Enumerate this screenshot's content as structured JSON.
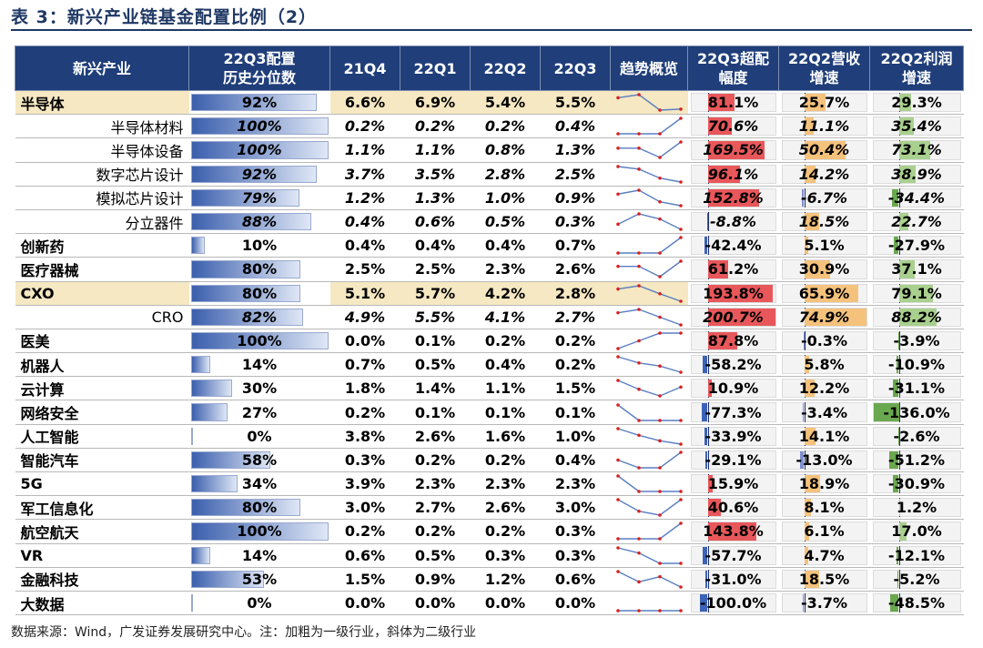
{
  "title": "表 3：新兴产业链基金配置比例（2）",
  "source": "数据来源：Wind，广发证券发展研究中心。注：加粗为一级行业，斜体为二级行业",
  "colors": {
    "header_bg": "#1f3e7a",
    "highlight_bg": "#f5e8c2",
    "excess_pos": "#e8575a",
    "excess_neg": "#3c63b8",
    "revenue_pos": "#f5c27c",
    "profit_neg": "#6aa84f",
    "sparkline": "#5a7fc2",
    "sparkline_dot": "#d92020"
  },
  "chart_data": {
    "type": "table",
    "columns": [
      "新兴产业",
      "22Q3配置历史分位数",
      "21Q4",
      "22Q1",
      "22Q2",
      "22Q3",
      "趋势概览",
      "22Q3超配幅度",
      "22Q2营收增速",
      "22Q2利润增速"
    ],
    "header": {
      "industry": "新兴产业",
      "pct_line1": "22Q3配置",
      "pct_line2": "历史分位数",
      "q1": "21Q4",
      "q2": "22Q1",
      "q3": "22Q2",
      "q4": "22Q3",
      "trend": "趋势概览",
      "ex_line1": "22Q3超配",
      "ex_line2": "幅度",
      "rev_line1": "22Q2营收",
      "rev_line2": "增速",
      "prf_line1": "22Q2利润",
      "prf_line2": "增速"
    },
    "rows": [
      {
        "name": "半导体",
        "level": 1,
        "highlight": true,
        "pct": "92%",
        "pct_value": 92,
        "q": [
          "6.6%",
          "6.9%",
          "5.4%",
          "5.5%"
        ],
        "trend": [
          6.6,
          6.9,
          5.4,
          5.5
        ],
        "excess": "81.1%",
        "excess_value": 81.1,
        "revenue": "25.7%",
        "revenue_value": 25.7,
        "profit": "29.3%",
        "profit_value": 29.3
      },
      {
        "name": "半导体材料",
        "level": 2,
        "highlight": false,
        "pct": "100%",
        "pct_value": 100,
        "q": [
          "0.2%",
          "0.2%",
          "0.2%",
          "0.4%"
        ],
        "trend": [
          0.2,
          0.2,
          0.2,
          0.4
        ],
        "excess": "70.6%",
        "excess_value": 70.6,
        "revenue": "11.1%",
        "revenue_value": 11.1,
        "profit": "35.4%",
        "profit_value": 35.4
      },
      {
        "name": "半导体设备",
        "level": 2,
        "highlight": false,
        "pct": "100%",
        "pct_value": 100,
        "q": [
          "1.1%",
          "1.1%",
          "0.8%",
          "1.3%"
        ],
        "trend": [
          1.1,
          1.1,
          0.8,
          1.3
        ],
        "excess": "169.5%",
        "excess_value": 169.5,
        "revenue": "50.4%",
        "revenue_value": 50.4,
        "profit": "73.1%",
        "profit_value": 73.1
      },
      {
        "name": "数字芯片设计",
        "level": 2,
        "highlight": false,
        "pct": "92%",
        "pct_value": 92,
        "q": [
          "3.7%",
          "3.5%",
          "2.8%",
          "2.5%"
        ],
        "trend": [
          3.7,
          3.5,
          2.8,
          2.5
        ],
        "excess": "96.1%",
        "excess_value": 96.1,
        "revenue": "14.2%",
        "revenue_value": 14.2,
        "profit": "38.9%",
        "profit_value": 38.9
      },
      {
        "name": "模拟芯片设计",
        "level": 2,
        "highlight": false,
        "pct": "79%",
        "pct_value": 79,
        "q": [
          "1.2%",
          "1.3%",
          "1.0%",
          "0.9%"
        ],
        "trend": [
          1.2,
          1.3,
          1.0,
          0.9
        ],
        "excess": "152.8%",
        "excess_value": 152.8,
        "revenue": "-6.7%",
        "revenue_value": -6.7,
        "profit": "-34.4%",
        "profit_value": -34.4
      },
      {
        "name": "分立器件",
        "level": 2,
        "highlight": false,
        "pct": "88%",
        "pct_value": 88,
        "q": [
          "0.4%",
          "0.6%",
          "0.5%",
          "0.3%"
        ],
        "trend": [
          0.4,
          0.6,
          0.5,
          0.3
        ],
        "excess": "-8.8%",
        "excess_value": -8.8,
        "revenue": "18.5%",
        "revenue_value": 18.5,
        "profit": "22.7%",
        "profit_value": 22.7
      },
      {
        "name": "创新药",
        "level": 1,
        "highlight": false,
        "pct": "10%",
        "pct_value": 10,
        "q": [
          "0.4%",
          "0.4%",
          "0.4%",
          "0.7%"
        ],
        "trend": [
          0.4,
          0.4,
          0.4,
          0.7
        ],
        "excess": "-42.4%",
        "excess_value": -42.4,
        "revenue": "5.1%",
        "revenue_value": 5.1,
        "profit": "-27.9%",
        "profit_value": -27.9
      },
      {
        "name": "医疗器械",
        "level": 1,
        "highlight": false,
        "pct": "80%",
        "pct_value": 80,
        "q": [
          "2.5%",
          "2.5%",
          "2.3%",
          "2.6%"
        ],
        "trend": [
          2.5,
          2.5,
          2.3,
          2.6
        ],
        "excess": "61.2%",
        "excess_value": 61.2,
        "revenue": "30.9%",
        "revenue_value": 30.9,
        "profit": "37.1%",
        "profit_value": 37.1
      },
      {
        "name": "CXO",
        "level": 1,
        "highlight": true,
        "pct": "80%",
        "pct_value": 80,
        "q": [
          "5.1%",
          "5.7%",
          "4.2%",
          "2.8%"
        ],
        "trend": [
          5.1,
          5.7,
          4.2,
          2.8
        ],
        "excess": "193.8%",
        "excess_value": 193.8,
        "revenue": "65.9%",
        "revenue_value": 65.9,
        "profit": "79.1%",
        "profit_value": 79.1
      },
      {
        "name": "CRO",
        "level": 2,
        "highlight": false,
        "pct": "82%",
        "pct_value": 82,
        "q": [
          "4.9%",
          "5.5%",
          "4.1%",
          "2.7%"
        ],
        "trend": [
          4.9,
          5.5,
          4.1,
          2.7
        ],
        "excess": "200.7%",
        "excess_value": 200.7,
        "revenue": "74.9%",
        "revenue_value": 74.9,
        "profit": "88.2%",
        "profit_value": 88.2
      },
      {
        "name": "医美",
        "level": 1,
        "highlight": false,
        "pct": "100%",
        "pct_value": 100,
        "q": [
          "0.0%",
          "0.1%",
          "0.2%",
          "0.2%"
        ],
        "trend": [
          0.0,
          0.1,
          0.2,
          0.2
        ],
        "excess": "87.8%",
        "excess_value": 87.8,
        "revenue": "-0.3%",
        "revenue_value": -0.3,
        "profit": "-3.9%",
        "profit_value": -3.9
      },
      {
        "name": "机器人",
        "level": 1,
        "highlight": false,
        "pct": "14%",
        "pct_value": 14,
        "q": [
          "0.7%",
          "0.5%",
          "0.4%",
          "0.2%"
        ],
        "trend": [
          0.7,
          0.5,
          0.4,
          0.2
        ],
        "excess": "-58.2%",
        "excess_value": -58.2,
        "revenue": "5.8%",
        "revenue_value": 5.8,
        "profit": "-10.9%",
        "profit_value": -10.9
      },
      {
        "name": "云计算",
        "level": 1,
        "highlight": false,
        "pct": "30%",
        "pct_value": 30,
        "q": [
          "1.8%",
          "1.4%",
          "1.1%",
          "1.5%"
        ],
        "trend": [
          1.8,
          1.4,
          1.1,
          1.5
        ],
        "excess": "10.9%",
        "excess_value": 10.9,
        "revenue": "12.2%",
        "revenue_value": 12.2,
        "profit": "-31.1%",
        "profit_value": -31.1
      },
      {
        "name": "网络安全",
        "level": 1,
        "highlight": false,
        "pct": "27%",
        "pct_value": 27,
        "q": [
          "0.2%",
          "0.1%",
          "0.1%",
          "0.1%"
        ],
        "trend": [
          0.2,
          0.1,
          0.1,
          0.1
        ],
        "excess": "-77.3%",
        "excess_value": -77.3,
        "revenue": "-3.4%",
        "revenue_value": -3.4,
        "profit": "-136.0%",
        "profit_value": -136.0
      },
      {
        "name": "人工智能",
        "level": 1,
        "highlight": false,
        "pct": "0%",
        "pct_value": 0,
        "q": [
          "3.8%",
          "2.6%",
          "1.6%",
          "1.0%"
        ],
        "trend": [
          3.8,
          2.6,
          1.6,
          1.0
        ],
        "excess": "-33.9%",
        "excess_value": -33.9,
        "revenue": "14.1%",
        "revenue_value": 14.1,
        "profit": "-2.6%",
        "profit_value": -2.6
      },
      {
        "name": "智能汽车",
        "level": 1,
        "highlight": false,
        "pct": "58%",
        "pct_value": 58,
        "q": [
          "0.3%",
          "0.2%",
          "0.2%",
          "0.4%"
        ],
        "trend": [
          0.3,
          0.2,
          0.2,
          0.4
        ],
        "excess": "-29.1%",
        "excess_value": -29.1,
        "revenue": "-13.0%",
        "revenue_value": -13.0,
        "profit": "-51.2%",
        "profit_value": -51.2
      },
      {
        "name": "5G",
        "level": 1,
        "highlight": false,
        "pct": "34%",
        "pct_value": 34,
        "q": [
          "3.9%",
          "2.3%",
          "2.3%",
          "2.3%"
        ],
        "trend": [
          3.9,
          2.3,
          2.3,
          2.3
        ],
        "excess": "15.9%",
        "excess_value": 15.9,
        "revenue": "18.9%",
        "revenue_value": 18.9,
        "profit": "-30.9%",
        "profit_value": -30.9
      },
      {
        "name": "军工信息化",
        "level": 1,
        "highlight": false,
        "pct": "80%",
        "pct_value": 80,
        "q": [
          "3.0%",
          "2.7%",
          "2.6%",
          "3.0%"
        ],
        "trend": [
          3.0,
          2.7,
          2.6,
          3.0
        ],
        "excess": "40.6%",
        "excess_value": 40.6,
        "revenue": "8.1%",
        "revenue_value": 8.1,
        "profit": "1.2%",
        "profit_value": 1.2
      },
      {
        "name": "航空航天",
        "level": 1,
        "highlight": false,
        "pct": "100%",
        "pct_value": 100,
        "q": [
          "0.2%",
          "0.2%",
          "0.2%",
          "0.3%"
        ],
        "trend": [
          0.2,
          0.2,
          0.2,
          0.3
        ],
        "excess": "143.8%",
        "excess_value": 143.8,
        "revenue": "6.1%",
        "revenue_value": 6.1,
        "profit": "17.0%",
        "profit_value": 17.0
      },
      {
        "name": "VR",
        "level": 1,
        "highlight": false,
        "pct": "14%",
        "pct_value": 14,
        "q": [
          "0.6%",
          "0.5%",
          "0.3%",
          "0.3%"
        ],
        "trend": [
          0.6,
          0.5,
          0.3,
          0.3
        ],
        "excess": "-57.7%",
        "excess_value": -57.7,
        "revenue": "4.7%",
        "revenue_value": 4.7,
        "profit": "-12.1%",
        "profit_value": -12.1
      },
      {
        "name": "金融科技",
        "level": 1,
        "highlight": false,
        "pct": "53%",
        "pct_value": 53,
        "q": [
          "1.5%",
          "0.9%",
          "1.2%",
          "0.6%"
        ],
        "trend": [
          1.5,
          0.9,
          1.2,
          0.6
        ],
        "excess": "-31.0%",
        "excess_value": -31.0,
        "revenue": "18.5%",
        "revenue_value": 18.5,
        "profit": "-5.2%",
        "profit_value": -5.2
      },
      {
        "name": "大数据",
        "level": 1,
        "highlight": false,
        "pct": "0%",
        "pct_value": 0,
        "q": [
          "0.0%",
          "0.0%",
          "0.0%",
          "0.0%"
        ],
        "trend": [
          0.0,
          0.0,
          0.0,
          0.0
        ],
        "excess": "-100.0%",
        "excess_value": -100.0,
        "revenue": "-3.7%",
        "revenue_value": -3.7,
        "profit": "-48.5%",
        "profit_value": -48.5
      }
    ]
  }
}
